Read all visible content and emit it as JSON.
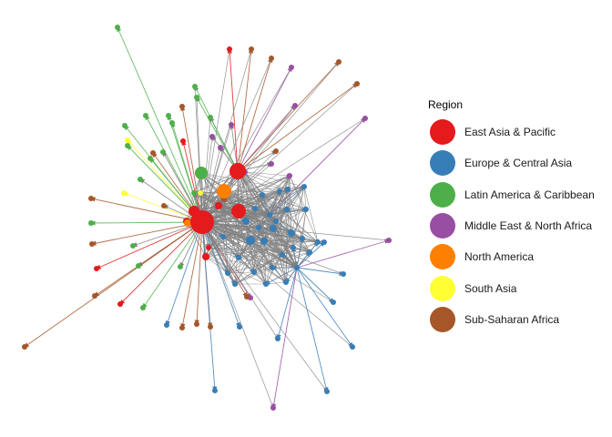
{
  "legend": {
    "title": "Region",
    "items": [
      {
        "key": "eap",
        "label": "East Asia & Pacific",
        "color": "#e41a1c"
      },
      {
        "key": "eca",
        "label": "Europe & Central Asia",
        "color": "#377eb8"
      },
      {
        "key": "lac",
        "label": "Latin America & Caribbean",
        "color": "#4daf4a"
      },
      {
        "key": "mena",
        "label": "Middle East & North Africa",
        "color": "#984ea3"
      },
      {
        "key": "na",
        "label": "North America",
        "color": "#ff7f00"
      },
      {
        "key": "sa",
        "label": "South Asia",
        "color": "#ffff33"
      },
      {
        "key": "ssa",
        "label": "Sub-Saharan Africa",
        "color": "#a65628"
      }
    ]
  },
  "colors": {
    "edge_default": "#808080"
  }
}
